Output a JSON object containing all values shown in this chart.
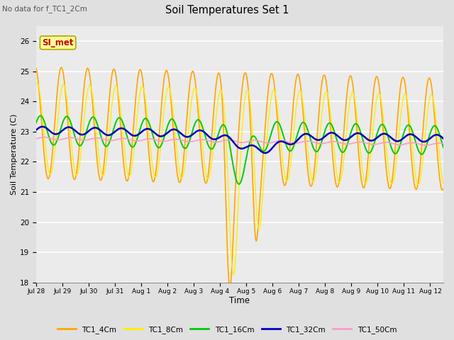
{
  "title": "Soil Temperatures Set 1",
  "xlabel": "Time",
  "ylabel": "Soil Temperature (C)",
  "subtitle": "No data for f_TC1_2Cm",
  "ylim": [
    18.0,
    26.5
  ],
  "xlim_days": 15.5,
  "legend_labels": [
    "TC1_4Cm",
    "TC1_8Cm",
    "TC1_16Cm",
    "TC1_32Cm",
    "TC1_50Cm"
  ],
  "colors": {
    "TC1_4Cm": "#FFA500",
    "TC1_8Cm": "#FFEE00",
    "TC1_16Cm": "#00CC00",
    "TC1_32Cm": "#0000BB",
    "TC1_50Cm": "#FF99CC"
  },
  "linewidths": {
    "TC1_4Cm": 1.2,
    "TC1_8Cm": 1.0,
    "TC1_16Cm": 1.4,
    "TC1_32Cm": 1.8,
    "TC1_50Cm": 1.2
  },
  "bg_color": "#E0E0E0",
  "plot_bg_color": "#EBEBEB",
  "grid_color": "#FFFFFF",
  "annotation_text": "SI_met",
  "annotation_color": "#CC0000",
  "annotation_bg": "#FFFF99",
  "tick_labels": [
    "Jul 28",
    "Jul 29",
    "Jul 30",
    "Jul 31",
    "Aug 1",
    "Aug 2",
    "Aug 3",
    "Aug 4",
    "Aug 5",
    "Aug 6",
    "Aug 7",
    "Aug 8",
    "Aug 9",
    "Aug 10",
    "Aug 11",
    "Aug 12"
  ],
  "tick_positions": [
    0,
    1,
    2,
    3,
    4,
    5,
    6,
    7,
    8,
    9,
    10,
    11,
    12,
    13,
    14,
    15
  ]
}
